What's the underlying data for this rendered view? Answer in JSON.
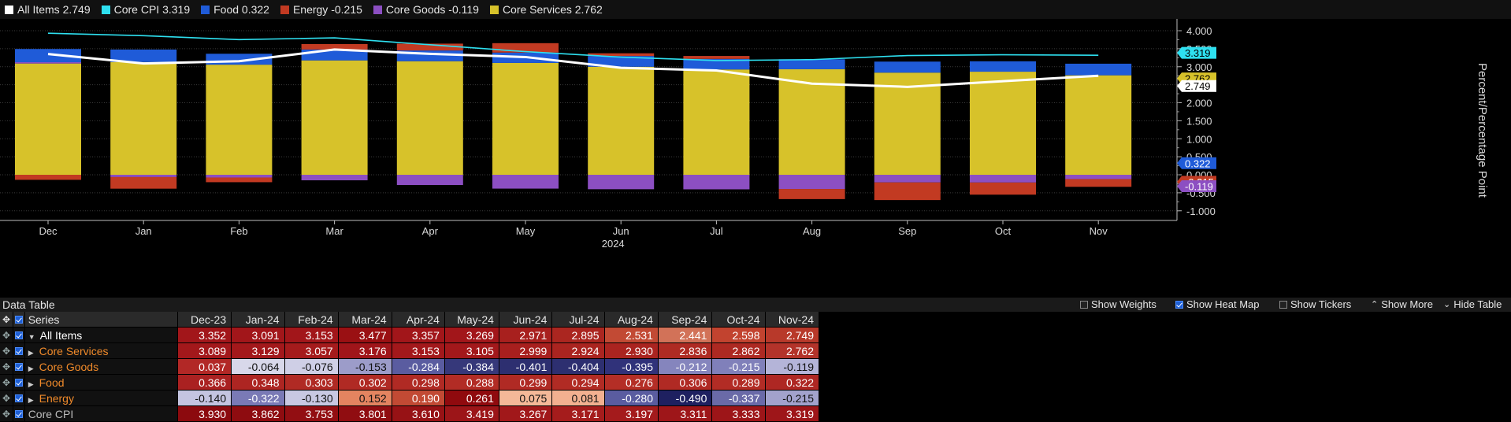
{
  "legend": [
    {
      "label": "All Items 2.749",
      "color": "#ffffff"
    },
    {
      "label": "Core CPI 3.319",
      "color": "#2ee0f0"
    },
    {
      "label": "Food 0.322",
      "color": "#1f5bd8"
    },
    {
      "label": "Energy -0.215",
      "color": "#c23a22"
    },
    {
      "label": "Core Goods -0.119",
      "color": "#8c4fc2"
    },
    {
      "label": "Core Services 2.762",
      "color": "#d7c22a"
    }
  ],
  "chart_data": {
    "type": "bar",
    "stacked": true,
    "categories": [
      "Dec",
      "Jan",
      "Feb",
      "Mar",
      "Apr",
      "May",
      "Jun",
      "Jul",
      "Aug",
      "Sep",
      "Oct",
      "Nov"
    ],
    "x_year_label": "2024",
    "ylabel": "Percent/Percentage Point",
    "ylim": [
      -1.2,
      4.2
    ],
    "yticks": [
      "4.000",
      "3.500",
      "3.000",
      "2.500",
      "2.000",
      "1.500",
      "1.000",
      "0.500",
      "0.000",
      "-0.500",
      "-1.000"
    ],
    "series": [
      {
        "name": "Core Services",
        "kind": "bar",
        "color": "#d7c22a",
        "values": [
          3.089,
          3.129,
          3.057,
          3.176,
          3.153,
          3.105,
          2.999,
          2.924,
          2.93,
          2.836,
          2.862,
          2.762
        ]
      },
      {
        "name": "Core Goods",
        "kind": "bar",
        "color": "#8c4fc2",
        "values": [
          0.037,
          -0.064,
          -0.076,
          -0.153,
          -0.284,
          -0.384,
          -0.401,
          -0.404,
          -0.395,
          -0.212,
          -0.215,
          -0.119
        ]
      },
      {
        "name": "Food",
        "kind": "bar",
        "color": "#1f5bd8",
        "values": [
          0.366,
          0.348,
          0.303,
          0.302,
          0.298,
          0.288,
          0.299,
          0.294,
          0.276,
          0.306,
          0.289,
          0.322
        ]
      },
      {
        "name": "Energy",
        "kind": "bar",
        "color": "#c23a22",
        "values": [
          -0.14,
          -0.322,
          -0.13,
          0.152,
          0.19,
          0.261,
          0.075,
          0.081,
          -0.28,
          -0.49,
          -0.337,
          -0.215
        ]
      },
      {
        "name": "All Items",
        "kind": "line",
        "color": "#ffffff",
        "values": [
          3.352,
          3.091,
          3.153,
          3.477,
          3.357,
          3.269,
          2.971,
          2.895,
          2.531,
          2.441,
          2.598,
          2.749
        ]
      },
      {
        "name": "Core CPI",
        "kind": "line",
        "color": "#2ee0f0",
        "values": [
          3.93,
          3.862,
          3.753,
          3.801,
          3.61,
          3.419,
          3.267,
          3.171,
          3.197,
          3.311,
          3.333,
          3.319
        ]
      }
    ],
    "last_value_tags": [
      {
        "text": "3.319",
        "value": 3.319,
        "bg": "#2ee0f0",
        "fg": "#000000"
      },
      {
        "text": "2.762",
        "value": 2.762,
        "bg": "#d7c22a",
        "fg": "#000000"
      },
      {
        "text": "2.749",
        "value": 2.749,
        "bg": "#ffffff",
        "fg": "#000000"
      },
      {
        "text": "0.322",
        "value": 0.322,
        "bg": "#1f5bd8",
        "fg": "#ffffff"
      },
      {
        "text": "-0.215",
        "value": -0.215,
        "bg": "#c23a22",
        "fg": "#ffffff"
      },
      {
        "text": "-0.119",
        "value": -0.119,
        "bg": "#8c4fc2",
        "fg": "#ffffff"
      }
    ]
  },
  "data_table": {
    "title": "Data Table",
    "controls": [
      {
        "label": "Show Weights",
        "checked": false
      },
      {
        "label": "Show Heat Map",
        "checked": true
      },
      {
        "label": "Show Tickers",
        "checked": false
      }
    ],
    "show_more": "Show More",
    "hide_table": "Hide Table",
    "series_header": "Series",
    "columns": [
      "Dec-23",
      "Jan-24",
      "Feb-24",
      "Mar-24",
      "Apr-24",
      "May-24",
      "Jun-24",
      "Jul-24",
      "Aug-24",
      "Sep-24",
      "Oct-24",
      "Nov-24"
    ],
    "rows": [
      {
        "name": "All Items",
        "indent": 0,
        "expand": "down",
        "color": "#ffffff",
        "values": [
          "3.352",
          "3.091",
          "3.153",
          "3.477",
          "3.357",
          "3.269",
          "2.971",
          "2.895",
          "2.531",
          "2.441",
          "2.598",
          "2.749"
        ],
        "bg": [
          "#a2161a",
          "#a2161a",
          "#a2161a",
          "#9a1013",
          "#a2161a",
          "#a2161a",
          "#a8201e",
          "#ab2620",
          "#c24a34",
          "#d27258",
          "#c2432f",
          "#b8392a"
        ]
      },
      {
        "name": "Core Services",
        "indent": 1,
        "expand": "right",
        "color": "#f08a2a",
        "values": [
          "3.089",
          "3.129",
          "3.057",
          "3.176",
          "3.153",
          "3.105",
          "2.999",
          "2.924",
          "2.930",
          "2.836",
          "2.862",
          "2.762"
        ],
        "bg": [
          "#a3181b",
          "#a3181b",
          "#a51b1c",
          "#a0151a",
          "#a3181b",
          "#a3181b",
          "#a81f1e",
          "#aa2420",
          "#aa2420",
          "#ae2b23",
          "#ad2922",
          "#b3332a"
        ]
      },
      {
        "name": "Core Goods",
        "indent": 1,
        "expand": "right",
        "color": "#f08a2a",
        "values": [
          "0.037",
          "-0.064",
          "-0.076",
          "-0.153",
          "-0.284",
          "-0.384",
          "-0.401",
          "-0.404",
          "-0.395",
          "-0.212",
          "-0.215",
          "-0.119"
        ],
        "bg": [
          "#b22826",
          "#d8d8ea",
          "#cfcfe6",
          "#9c9cc9",
          "#5a5ca0",
          "#36387a",
          "#2d2f70",
          "#2d2f70",
          "#30327a",
          "#8585bd",
          "#8080ba",
          "#b4b4d8"
        ]
      },
      {
        "name": "Food",
        "indent": 1,
        "expand": "right",
        "color": "#f08a2a",
        "values": [
          "0.366",
          "0.348",
          "0.303",
          "0.302",
          "0.298",
          "0.288",
          "0.299",
          "0.294",
          "0.276",
          "0.306",
          "0.289",
          "0.322"
        ],
        "bg": [
          "#aa2121",
          "#ad2522",
          "#b02a24",
          "#b02a24",
          "#b02a24",
          "#b22c25",
          "#b02a24",
          "#b12b24",
          "#b42e26",
          "#b02a24",
          "#b22c25",
          "#ae2723"
        ]
      },
      {
        "name": "Energy",
        "indent": 1,
        "expand": "right",
        "color": "#f08a2a",
        "values": [
          "-0.140",
          "-0.322",
          "-0.130",
          "0.152",
          "0.190",
          "0.261",
          "0.075",
          "0.081",
          "-0.280",
          "-0.490",
          "-0.337",
          "-0.215"
        ],
        "bg": [
          "#c4c4e0",
          "#7a7ab6",
          "#c8c8e2",
          "#e48460",
          "#c24a34",
          "#900a0e",
          "#f4b898",
          "#f2b090",
          "#5a5ca0",
          "#1e2060",
          "#6a6aa8",
          "#a2a2cc"
        ]
      },
      {
        "name": "Core CPI",
        "indent": 0,
        "expand": "none",
        "color": "#bdbdbd",
        "values": [
          "3.930",
          "3.862",
          "3.753",
          "3.801",
          "3.610",
          "3.419",
          "3.267",
          "3.171",
          "3.197",
          "3.311",
          "3.333",
          "3.319"
        ],
        "bg": [
          "#8c0a0e",
          "#8e0c10",
          "#920e12",
          "#900d11",
          "#971215",
          "#9c1518",
          "#a1181a",
          "#a51c1c",
          "#a41b1c",
          "#9e1619",
          "#9d1518",
          "#9e1619"
        ]
      }
    ]
  }
}
